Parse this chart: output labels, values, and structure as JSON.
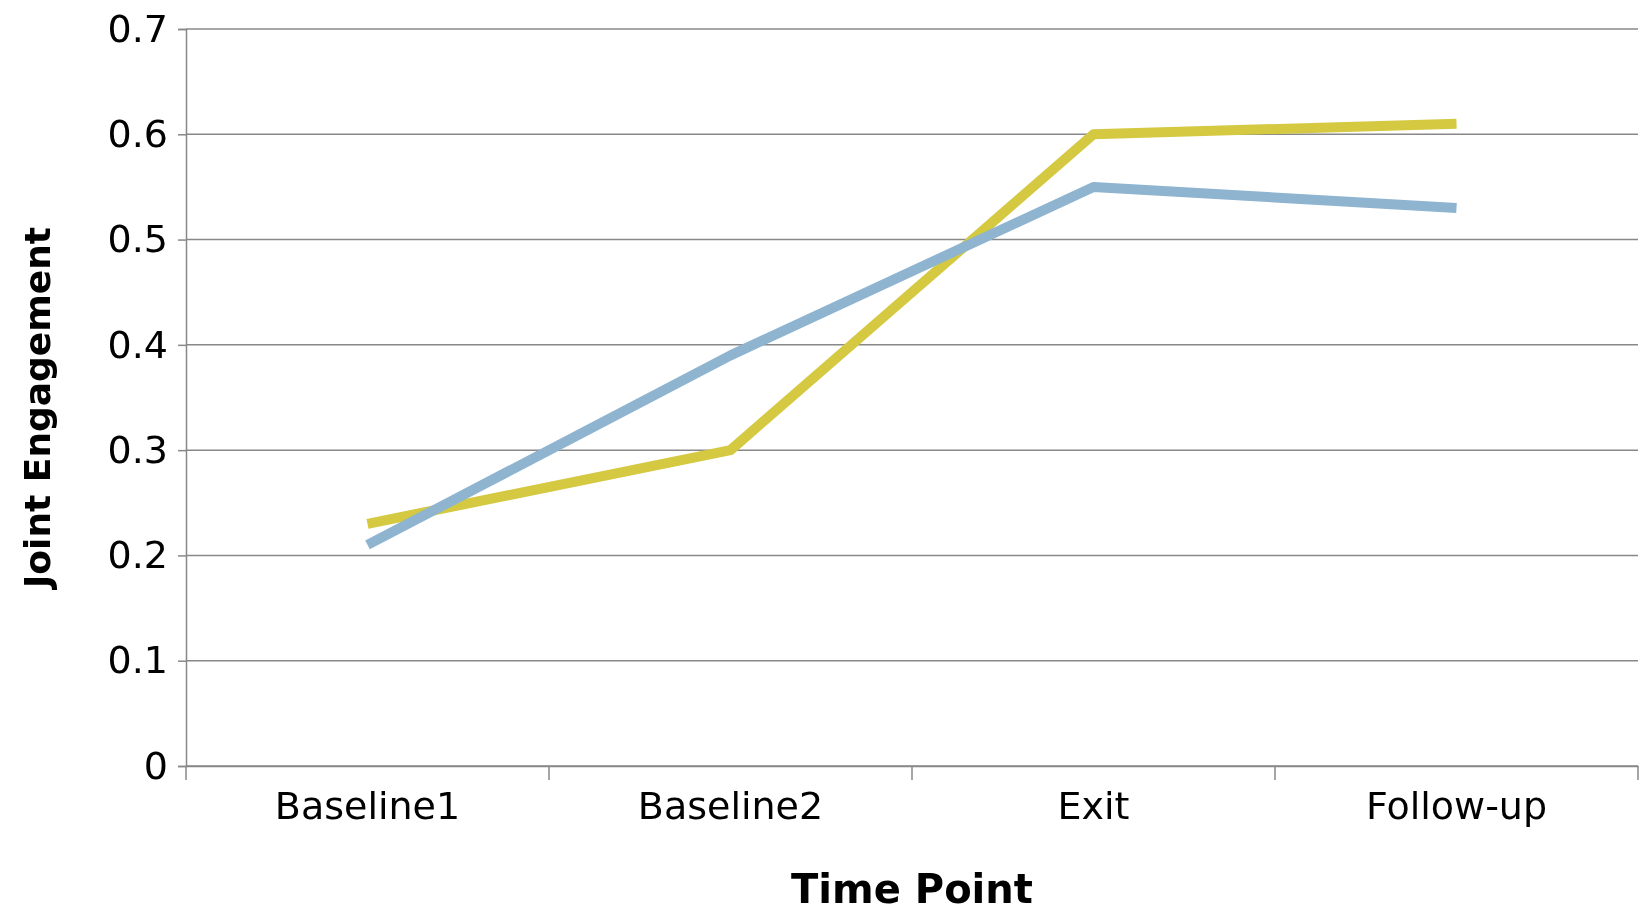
{
  "chart_data": {
    "type": "line",
    "xlabel": "Time Point",
    "ylabel": "Joint Engagement",
    "categories": [
      "Baseline1",
      "Baseline2",
      "Exit",
      "Follow-up"
    ],
    "series": [
      {
        "color": "#d4c941",
        "values": [
          0.23,
          0.3,
          0.6,
          0.61
        ]
      },
      {
        "color": "#8eb4d0",
        "values": [
          0.21,
          0.39,
          0.55,
          0.53
        ]
      }
    ],
    "ylim": [
      0,
      0.7
    ],
    "yticks": [
      0,
      0.1,
      0.2,
      0.3,
      0.4,
      0.5,
      0.6,
      0.7
    ],
    "grid": "y",
    "marker": "none",
    "line_style": "solid"
  }
}
